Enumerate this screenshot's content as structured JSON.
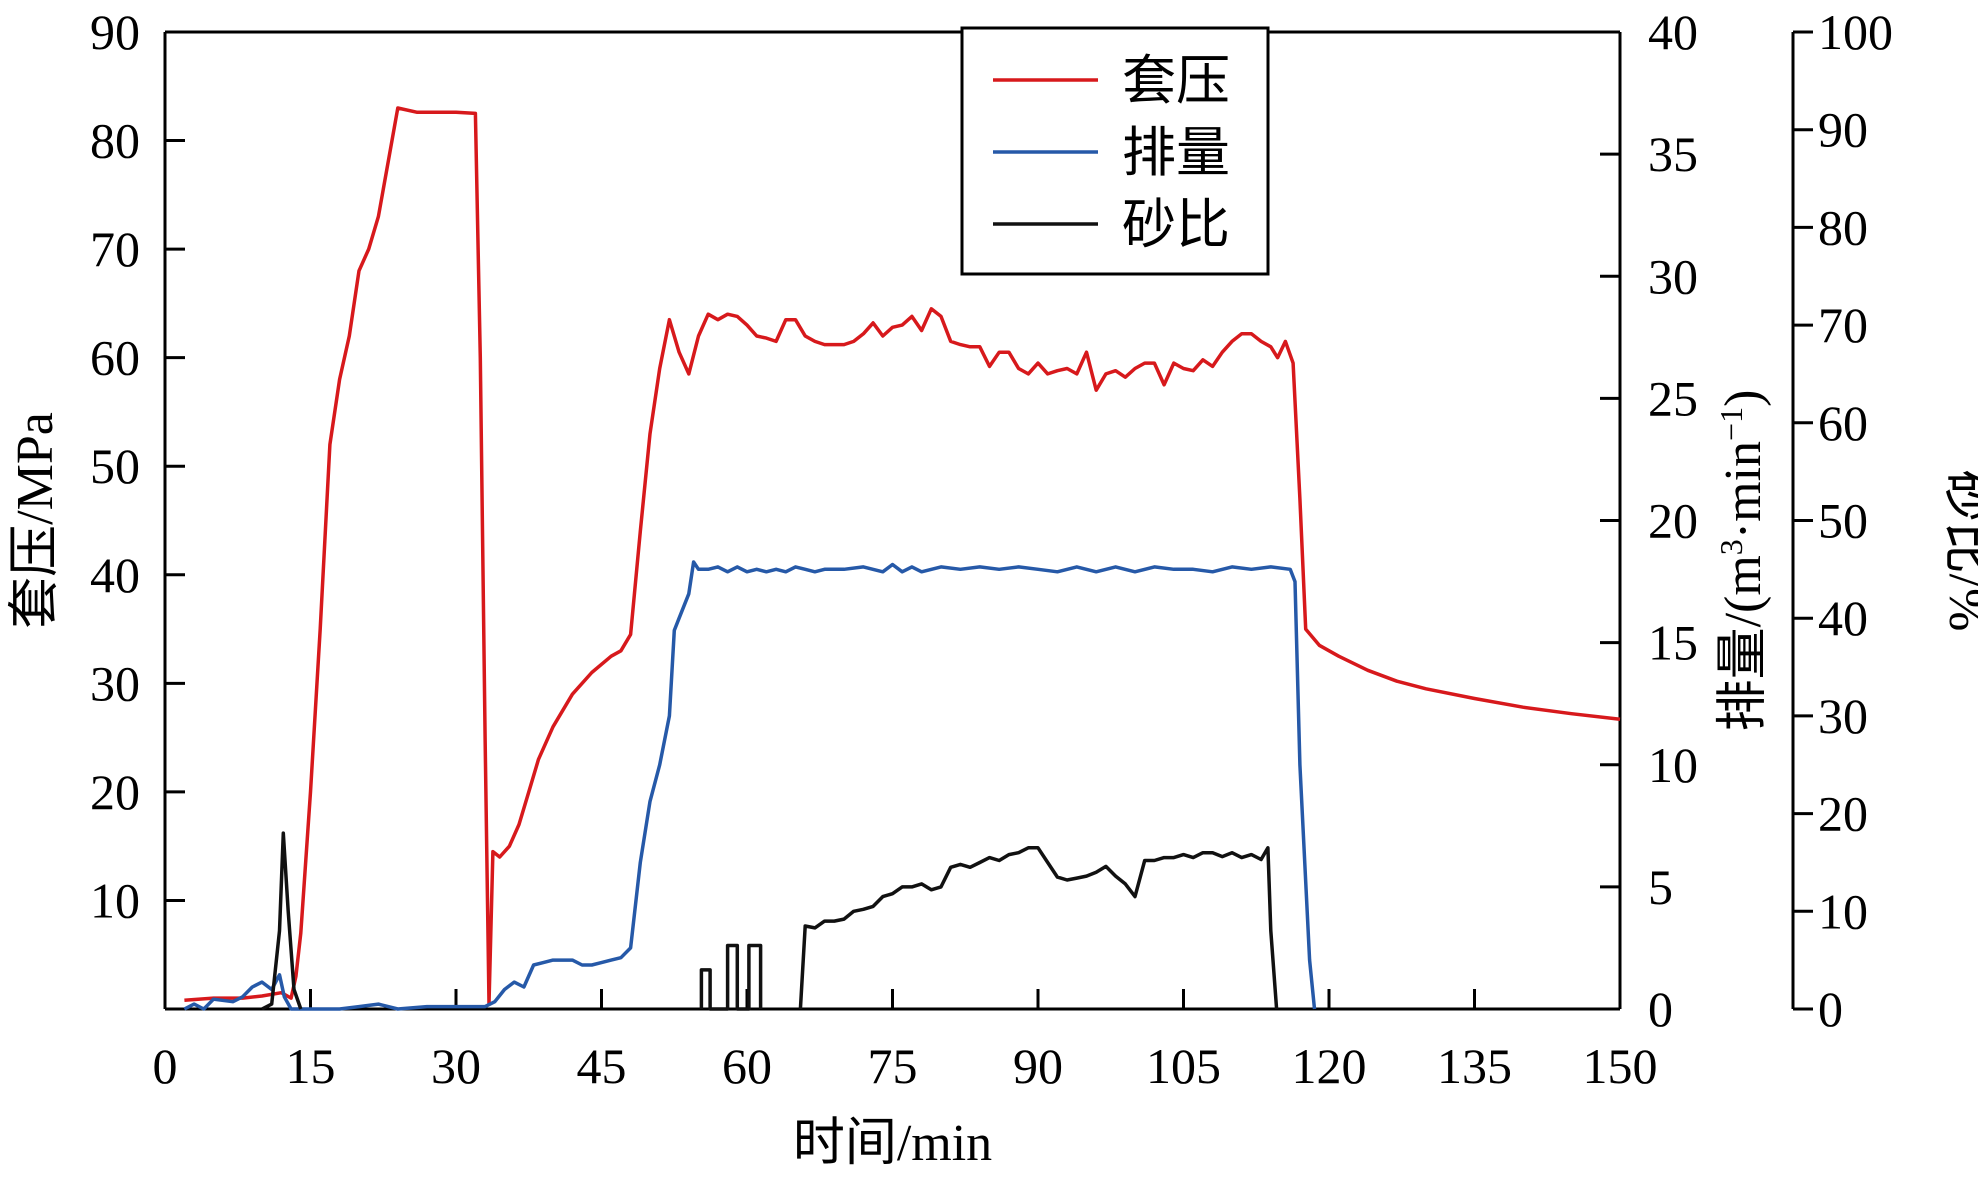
{
  "chart_data": {
    "type": "line",
    "xlabel": "时间/min",
    "xlim": [
      0,
      150
    ],
    "x_ticks": [
      0,
      15,
      30,
      45,
      60,
      75,
      90,
      105,
      120,
      135,
      150
    ],
    "y_axes": [
      {
        "id": "left",
        "label": "套压/MPa",
        "lim": [
          0,
          90
        ],
        "ticks": [
          10,
          20,
          30,
          40,
          50,
          60,
          70,
          80,
          90
        ]
      },
      {
        "id": "right1",
        "label_main": "排量/(m",
        "label_sup": "3",
        "label_mid": "·min",
        "label_sup2": "−1",
        "label_end": ")",
        "lim": [
          0,
          40
        ],
        "ticks": [
          0,
          5,
          10,
          15,
          20,
          25,
          30,
          35,
          40
        ]
      },
      {
        "id": "right2",
        "label": "砂比/%",
        "lim": [
          0,
          100
        ],
        "ticks": [
          0,
          10,
          20,
          30,
          40,
          50,
          60,
          70,
          80,
          90,
          100
        ]
      }
    ],
    "legend_position": "top-right",
    "series": [
      {
        "name": "套压",
        "axis": "left",
        "color": "#d7191c",
        "points": [
          [
            2,
            0.8
          ],
          [
            5,
            1.0
          ],
          [
            8,
            1.0
          ],
          [
            10,
            1.2
          ],
          [
            12,
            1.5
          ],
          [
            13,
            1.0
          ],
          [
            13.5,
            3
          ],
          [
            14,
            7
          ],
          [
            15,
            20
          ],
          [
            16,
            35
          ],
          [
            17,
            52
          ],
          [
            18,
            58
          ],
          [
            19,
            62
          ],
          [
            20,
            68
          ],
          [
            21,
            70
          ],
          [
            22,
            73
          ],
          [
            23,
            78
          ],
          [
            24,
            83
          ],
          [
            26,
            82.6
          ],
          [
            28,
            82.6
          ],
          [
            30,
            82.6
          ],
          [
            32,
            82.5
          ],
          [
            32.5,
            60
          ],
          [
            33,
            25
          ],
          [
            33.4,
            0.5
          ],
          [
            33.8,
            14.5
          ],
          [
            34.5,
            14
          ],
          [
            35.5,
            15
          ],
          [
            36.5,
            17
          ],
          [
            37.5,
            20
          ],
          [
            38.5,
            23
          ],
          [
            40,
            26
          ],
          [
            42,
            29
          ],
          [
            44,
            31
          ],
          [
            46,
            32.5
          ],
          [
            47,
            33
          ],
          [
            48,
            34.5
          ],
          [
            49,
            44
          ],
          [
            50,
            53
          ],
          [
            51,
            59
          ],
          [
            52,
            63.5
          ],
          [
            53,
            60.5
          ],
          [
            54,
            58.5
          ],
          [
            55,
            62
          ],
          [
            56,
            64
          ],
          [
            57,
            63.5
          ],
          [
            58,
            64
          ],
          [
            59,
            63.8
          ],
          [
            60,
            63
          ],
          [
            61,
            62
          ],
          [
            62,
            61.8
          ],
          [
            63,
            61.5
          ],
          [
            64,
            63.5
          ],
          [
            65,
            63.5
          ],
          [
            66,
            62
          ],
          [
            67,
            61.5
          ],
          [
            68,
            61.2
          ],
          [
            70,
            61.2
          ],
          [
            71,
            61.5
          ],
          [
            72,
            62.2
          ],
          [
            73,
            63.2
          ],
          [
            74,
            62
          ],
          [
            75,
            62.8
          ],
          [
            76,
            63
          ],
          [
            77,
            63.8
          ],
          [
            78,
            62.5
          ],
          [
            79,
            64.5
          ],
          [
            80,
            63.8
          ],
          [
            81,
            61.5
          ],
          [
            82,
            61.2
          ],
          [
            83,
            61
          ],
          [
            84,
            61
          ],
          [
            85,
            59.2
          ],
          [
            86,
            60.5
          ],
          [
            87,
            60.5
          ],
          [
            88,
            59
          ],
          [
            89,
            58.5
          ],
          [
            90,
            59.5
          ],
          [
            91,
            58.5
          ],
          [
            92,
            58.8
          ],
          [
            93,
            59
          ],
          [
            94,
            58.5
          ],
          [
            95,
            60.5
          ],
          [
            96,
            57
          ],
          [
            97,
            58.5
          ],
          [
            98,
            58.8
          ],
          [
            99,
            58.2
          ],
          [
            100,
            59
          ],
          [
            101,
            59.5
          ],
          [
            102,
            59.5
          ],
          [
            103,
            57.5
          ],
          [
            104,
            59.5
          ],
          [
            105,
            59
          ],
          [
            106,
            58.8
          ],
          [
            107,
            59.8
          ],
          [
            108,
            59.2
          ],
          [
            109,
            60.5
          ],
          [
            110,
            61.5
          ],
          [
            111,
            62.2
          ],
          [
            112,
            62.2
          ],
          [
            113,
            61.5
          ],
          [
            114,
            61
          ],
          [
            114.7,
            60
          ],
          [
            115.5,
            61.5
          ],
          [
            116.3,
            59.5
          ],
          [
            117,
            47
          ],
          [
            117.6,
            35
          ],
          [
            119,
            33.5
          ],
          [
            121,
            32.5
          ],
          [
            124,
            31.2
          ],
          [
            127,
            30.2
          ],
          [
            130,
            29.5
          ],
          [
            135,
            28.6
          ],
          [
            140,
            27.8
          ],
          [
            145,
            27.2
          ],
          [
            150,
            26.7
          ]
        ]
      },
      {
        "name": "排量",
        "axis": "right1",
        "color": "#2659a8",
        "points": [
          [
            2,
            0
          ],
          [
            3,
            0.2
          ],
          [
            4,
            0
          ],
          [
            5,
            0.4
          ],
          [
            7,
            0.3
          ],
          [
            8,
            0.5
          ],
          [
            9,
            0.9
          ],
          [
            10,
            1.1
          ],
          [
            11,
            0.8
          ],
          [
            11.8,
            1.4
          ],
          [
            12.3,
            0.5
          ],
          [
            13,
            0
          ],
          [
            18,
            0
          ],
          [
            20,
            0.1
          ],
          [
            22,
            0.2
          ],
          [
            24,
            0
          ],
          [
            27,
            0.1
          ],
          [
            30,
            0.1
          ],
          [
            33,
            0.1
          ],
          [
            34,
            0.3
          ],
          [
            35,
            0.8
          ],
          [
            36,
            1.1
          ],
          [
            37,
            0.9
          ],
          [
            38,
            1.8
          ],
          [
            39,
            1.9
          ],
          [
            40,
            2.0
          ],
          [
            41,
            2.0
          ],
          [
            42,
            2.0
          ],
          [
            43,
            1.8
          ],
          [
            44,
            1.8
          ],
          [
            45,
            1.9
          ],
          [
            46,
            2.0
          ],
          [
            47,
            2.1
          ],
          [
            48,
            2.5
          ],
          [
            49,
            6
          ],
          [
            50,
            8.5
          ],
          [
            51,
            10
          ],
          [
            52,
            12
          ],
          [
            52.5,
            15.5
          ],
          [
            53,
            16
          ],
          [
            54,
            17
          ],
          [
            54.5,
            18.3
          ],
          [
            55,
            18
          ],
          [
            56,
            18
          ],
          [
            57,
            18.1
          ],
          [
            58,
            17.9
          ],
          [
            59,
            18.1
          ],
          [
            60,
            17.9
          ],
          [
            61,
            18.0
          ],
          [
            62,
            17.9
          ],
          [
            63,
            18.0
          ],
          [
            64,
            17.9
          ],
          [
            65,
            18.1
          ],
          [
            66,
            18.0
          ],
          [
            67,
            17.9
          ],
          [
            68,
            18.0
          ],
          [
            70,
            18.0
          ],
          [
            72,
            18.1
          ],
          [
            74,
            17.9
          ],
          [
            75,
            18.2
          ],
          [
            76,
            17.9
          ],
          [
            77,
            18.1
          ],
          [
            78,
            17.9
          ],
          [
            80,
            18.1
          ],
          [
            82,
            18.0
          ],
          [
            84,
            18.1
          ],
          [
            86,
            18.0
          ],
          [
            88,
            18.1
          ],
          [
            90,
            18.0
          ],
          [
            92,
            17.9
          ],
          [
            94,
            18.1
          ],
          [
            96,
            17.9
          ],
          [
            98,
            18.1
          ],
          [
            100,
            17.9
          ],
          [
            102,
            18.1
          ],
          [
            104,
            18.0
          ],
          [
            106,
            18.0
          ],
          [
            108,
            17.9
          ],
          [
            110,
            18.1
          ],
          [
            112,
            18.0
          ],
          [
            114,
            18.1
          ],
          [
            116,
            18.0
          ],
          [
            116.5,
            17.5
          ],
          [
            117,
            10
          ],
          [
            118,
            2
          ],
          [
            118.5,
            0
          ]
        ]
      },
      {
        "name": "砂比",
        "axis": "right2",
        "color": "#111111",
        "points": [
          [
            10,
            0
          ],
          [
            11,
            0.5
          ],
          [
            11.8,
            8
          ],
          [
            12.2,
            18
          ],
          [
            12.7,
            10
          ],
          [
            13.3,
            2
          ],
          [
            14,
            0
          ]
        ]
      },
      {
        "name": "",
        "axis": "right2",
        "color": "#111111",
        "points": [
          [
            55.3,
            0
          ],
          [
            55.3,
            4
          ],
          [
            56.2,
            4
          ],
          [
            56.2,
            0
          ],
          [
            58,
            0
          ],
          [
            58,
            6.5
          ],
          [
            59,
            6.5
          ],
          [
            59,
            0
          ],
          [
            60.2,
            0
          ],
          [
            60.2,
            6.5
          ],
          [
            61.4,
            6.5
          ],
          [
            61.4,
            0
          ]
        ]
      },
      {
        "name": "",
        "axis": "right2",
        "color": "#111111",
        "points": [
          [
            65.5,
            0
          ],
          [
            66,
            8.5
          ],
          [
            67,
            8.3
          ],
          [
            68,
            9
          ],
          [
            69,
            9
          ],
          [
            70,
            9.2
          ],
          [
            71,
            10
          ],
          [
            72,
            10.2
          ],
          [
            73,
            10.5
          ],
          [
            74,
            11.5
          ],
          [
            75,
            11.8
          ],
          [
            76,
            12.5
          ],
          [
            77,
            12.5
          ],
          [
            78,
            12.8
          ],
          [
            79,
            12.2
          ],
          [
            80,
            12.5
          ],
          [
            81,
            14.5
          ],
          [
            82,
            14.8
          ],
          [
            83,
            14.5
          ],
          [
            84,
            15
          ],
          [
            85,
            15.5
          ],
          [
            86,
            15.2
          ],
          [
            87,
            15.8
          ],
          [
            88,
            16
          ],
          [
            89,
            16.5
          ],
          [
            90,
            16.5
          ],
          [
            91,
            15
          ],
          [
            92,
            13.5
          ],
          [
            93,
            13.2
          ],
          [
            94,
            13.4
          ],
          [
            95,
            13.6
          ],
          [
            96,
            14
          ],
          [
            97,
            14.6
          ],
          [
            98,
            13.6
          ],
          [
            99,
            12.8
          ],
          [
            100,
            11.5
          ],
          [
            101,
            15.2
          ],
          [
            102,
            15.2
          ],
          [
            103,
            15.5
          ],
          [
            104,
            15.5
          ],
          [
            105,
            15.8
          ],
          [
            106,
            15.5
          ],
          [
            107,
            16
          ],
          [
            108,
            16
          ],
          [
            109,
            15.6
          ],
          [
            110,
            16
          ],
          [
            111,
            15.5
          ],
          [
            112,
            15.8
          ],
          [
            113,
            15.3
          ],
          [
            113.7,
            16.5
          ],
          [
            114,
            8
          ],
          [
            114.6,
            0
          ]
        ]
      }
    ]
  }
}
